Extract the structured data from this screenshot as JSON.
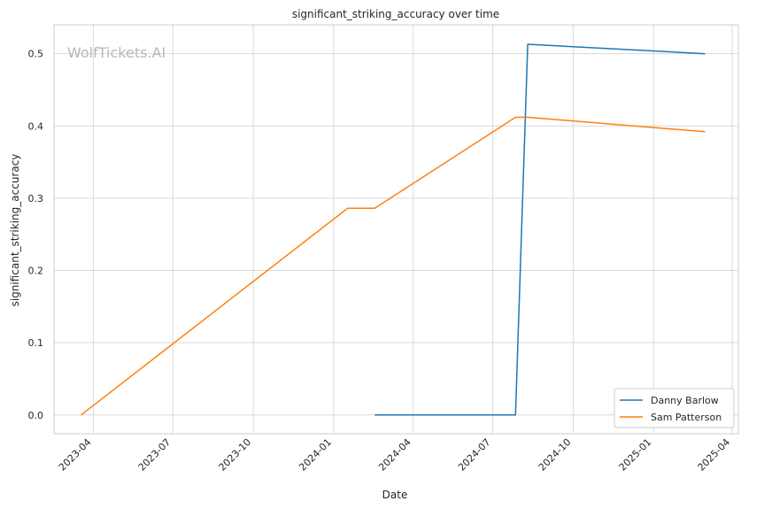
{
  "chart_data": {
    "type": "line",
    "title": "significant_striking_accuracy over time",
    "xlabel": "Date",
    "ylabel": "significant_striking_accuracy",
    "watermark": "WolfTickets.AI",
    "x_axis_type": "date",
    "xlim": [
      "2023-02-15",
      "2025-04-08"
    ],
    "ylim": [
      -0.026,
      0.54
    ],
    "x_ticks": [
      "2023-04",
      "2023-07",
      "2023-10",
      "2024-01",
      "2024-04",
      "2024-07",
      "2024-10",
      "2025-01",
      "2025-04"
    ],
    "y_ticks": [
      "0.0",
      "0.1",
      "0.2",
      "0.3",
      "0.4",
      "0.5"
    ],
    "grid": true,
    "legend_position": "lower-right",
    "series": [
      {
        "name": "Danny Barlow",
        "color": "#1f77b4",
        "points": [
          {
            "x": "2024-02-17",
            "y": 0.0
          },
          {
            "x": "2024-07-27",
            "y": 0.0
          },
          {
            "x": "2024-08-10",
            "y": 0.513
          },
          {
            "x": "2025-03-01",
            "y": 0.5
          }
        ]
      },
      {
        "name": "Sam Patterson",
        "color": "#ff7f0e",
        "points": [
          {
            "x": "2023-03-18",
            "y": 0.0
          },
          {
            "x": "2024-01-17",
            "y": 0.286
          },
          {
            "x": "2024-02-17",
            "y": 0.286
          },
          {
            "x": "2024-07-27",
            "y": 0.412
          },
          {
            "x": "2024-08-10",
            "y": 0.412
          },
          {
            "x": "2025-03-01",
            "y": 0.392
          }
        ]
      }
    ]
  }
}
